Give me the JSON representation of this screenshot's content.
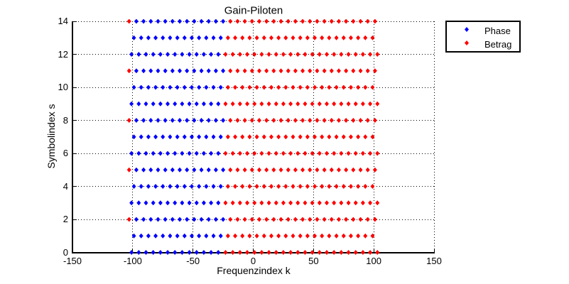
{
  "chart_data": {
    "type": "scatter",
    "title": "Gain-Piloten",
    "xlabel": "Frequenzindex k",
    "ylabel": "Symbolindex s",
    "xlim": [
      -150,
      150
    ],
    "ylim": [
      0,
      14
    ],
    "xticks": [
      -150,
      -100,
      -50,
      0,
      50,
      100,
      150
    ],
    "yticks": [
      0,
      2,
      4,
      6,
      8,
      10,
      12,
      14
    ],
    "grid": "dotted",
    "marker": "diamond",
    "colors": {
      "phase": "#0000ff",
      "betrag": "#ff0000"
    },
    "legend": {
      "position": "outside-top-right",
      "entries": [
        {
          "label": "Phase",
          "color": "#0000ff"
        },
        {
          "label": "Betrag",
          "color": "#ff0000"
        }
      ]
    },
    "rows": [
      {
        "s": 0,
        "phase_k": [
          -101,
          -95,
          -89,
          -83,
          -77,
          -71,
          -65,
          -59,
          -53,
          -47,
          -41,
          -35,
          -29
        ],
        "betrag_k": [
          -23,
          -17,
          -11,
          -5,
          1,
          7,
          13,
          19,
          25,
          31,
          37,
          43,
          49,
          55,
          61,
          67,
          73,
          79,
          85,
          91,
          97,
          103
        ]
      },
      {
        "s": 1,
        "phase_k": [
          -99,
          -93,
          -87,
          -81,
          -75,
          -69,
          -63,
          -57,
          -51,
          -45,
          -39,
          -33,
          -27
        ],
        "betrag_k": [
          -21,
          -15,
          -9,
          -3,
          3,
          9,
          15,
          21,
          27,
          33,
          39,
          45,
          51,
          57,
          63,
          69,
          75,
          81,
          87,
          93,
          99
        ]
      },
      {
        "s": 2,
        "phase_k": [
          -97,
          -91,
          -85,
          -79,
          -73,
          -67,
          -61,
          -55,
          -49,
          -43,
          -37,
          -31,
          -25
        ],
        "betrag_k": [
          -103,
          -19,
          -13,
          -7,
          -1,
          5,
          11,
          17,
          23,
          29,
          35,
          41,
          47,
          53,
          59,
          65,
          71,
          77,
          83,
          89,
          95,
          101
        ]
      },
      {
        "s": 3,
        "phase_k": [
          -101,
          -95,
          -89,
          -83,
          -77,
          -71,
          -65,
          -59,
          -53,
          -47,
          -41,
          -35,
          -29
        ],
        "betrag_k": [
          -23,
          -17,
          -11,
          -5,
          1,
          7,
          13,
          19,
          25,
          31,
          37,
          43,
          49,
          55,
          61,
          67,
          73,
          79,
          85,
          91,
          97,
          103
        ]
      },
      {
        "s": 4,
        "phase_k": [
          -99,
          -93,
          -87,
          -81,
          -75,
          -69,
          -63,
          -57,
          -51,
          -45,
          -39,
          -33,
          -27
        ],
        "betrag_k": [
          -21,
          -15,
          -9,
          -3,
          3,
          9,
          15,
          21,
          27,
          33,
          39,
          45,
          51,
          57,
          63,
          69,
          75,
          81,
          87,
          93,
          99
        ]
      },
      {
        "s": 5,
        "phase_k": [
          -97,
          -91,
          -85,
          -79,
          -73,
          -67,
          -61,
          -55,
          -49,
          -43,
          -37,
          -31,
          -25
        ],
        "betrag_k": [
          -103,
          -19,
          -13,
          -7,
          -1,
          5,
          11,
          17,
          23,
          29,
          35,
          41,
          47,
          53,
          59,
          65,
          71,
          77,
          83,
          89,
          95,
          101
        ]
      },
      {
        "s": 6,
        "phase_k": [
          -101,
          -95,
          -89,
          -83,
          -77,
          -71,
          -65,
          -59,
          -53,
          -47,
          -41,
          -35,
          -29
        ],
        "betrag_k": [
          -23,
          -17,
          -11,
          -5,
          1,
          7,
          13,
          19,
          25,
          31,
          37,
          43,
          49,
          55,
          61,
          67,
          73,
          79,
          85,
          91,
          97,
          103
        ]
      },
      {
        "s": 7,
        "phase_k": [
          -99,
          -93,
          -87,
          -81,
          -75,
          -69,
          -63,
          -57,
          -51,
          -45,
          -39,
          -33,
          -27
        ],
        "betrag_k": [
          -21,
          -15,
          -9,
          -3,
          3,
          9,
          15,
          21,
          27,
          33,
          39,
          45,
          51,
          57,
          63,
          69,
          75,
          81,
          87,
          93,
          99
        ]
      },
      {
        "s": 8,
        "phase_k": [
          -97,
          -91,
          -85,
          -79,
          -73,
          -67,
          -61,
          -55,
          -49,
          -43,
          -37,
          -31,
          -25
        ],
        "betrag_k": [
          -103,
          -19,
          -13,
          -7,
          -1,
          5,
          11,
          17,
          23,
          29,
          35,
          41,
          47,
          53,
          59,
          65,
          71,
          77,
          83,
          89,
          95,
          101
        ]
      },
      {
        "s": 9,
        "phase_k": [
          -101,
          -95,
          -89,
          -83,
          -77,
          -71,
          -65,
          -59,
          -53,
          -47,
          -41,
          -35,
          -29
        ],
        "betrag_k": [
          -23,
          -17,
          -11,
          -5,
          1,
          7,
          13,
          19,
          25,
          31,
          37,
          43,
          49,
          55,
          61,
          67,
          73,
          79,
          85,
          91,
          97,
          103
        ]
      },
      {
        "s": 10,
        "phase_k": [
          -99,
          -93,
          -87,
          -81,
          -75,
          -69,
          -63,
          -57,
          -51,
          -45,
          -39,
          -33,
          -27
        ],
        "betrag_k": [
          -21,
          -15,
          -9,
          -3,
          3,
          9,
          15,
          21,
          27,
          33,
          39,
          45,
          51,
          57,
          63,
          69,
          75,
          81,
          87,
          93,
          99
        ]
      },
      {
        "s": 11,
        "phase_k": [
          -97,
          -91,
          -85,
          -79,
          -73,
          -67,
          -61,
          -55,
          -49,
          -43,
          -37,
          -31,
          -25
        ],
        "betrag_k": [
          -103,
          -19,
          -13,
          -7,
          -1,
          5,
          11,
          17,
          23,
          29,
          35,
          41,
          47,
          53,
          59,
          65,
          71,
          77,
          83,
          89,
          95,
          101
        ]
      },
      {
        "s": 12,
        "phase_k": [
          -101,
          -95,
          -89,
          -83,
          -77,
          -71,
          -65,
          -59,
          -53,
          -47,
          -41,
          -35,
          -29
        ],
        "betrag_k": [
          -23,
          -17,
          -11,
          -5,
          1,
          7,
          13,
          19,
          25,
          31,
          37,
          43,
          49,
          55,
          61,
          67,
          73,
          79,
          85,
          91,
          97,
          103
        ]
      },
      {
        "s": 13,
        "phase_k": [
          -99,
          -93,
          -87,
          -81,
          -75,
          -69,
          -63,
          -57,
          -51,
          -45,
          -39,
          -33,
          -27
        ],
        "betrag_k": [
          -21,
          -15,
          -9,
          -3,
          3,
          9,
          15,
          21,
          27,
          33,
          39,
          45,
          51,
          57,
          63,
          69,
          75,
          81,
          87,
          93,
          99
        ]
      },
      {
        "s": 14,
        "phase_k": [
          -97,
          -91,
          -85,
          -79,
          -73,
          -67,
          -61,
          -55,
          -49,
          -43,
          -37,
          -31,
          -25
        ],
        "betrag_k": [
          -103,
          -19,
          -13,
          -7,
          -1,
          5,
          11,
          17,
          23,
          29,
          35,
          41,
          47,
          53,
          59,
          65,
          71,
          77,
          83,
          89,
          95,
          101
        ]
      }
    ]
  }
}
